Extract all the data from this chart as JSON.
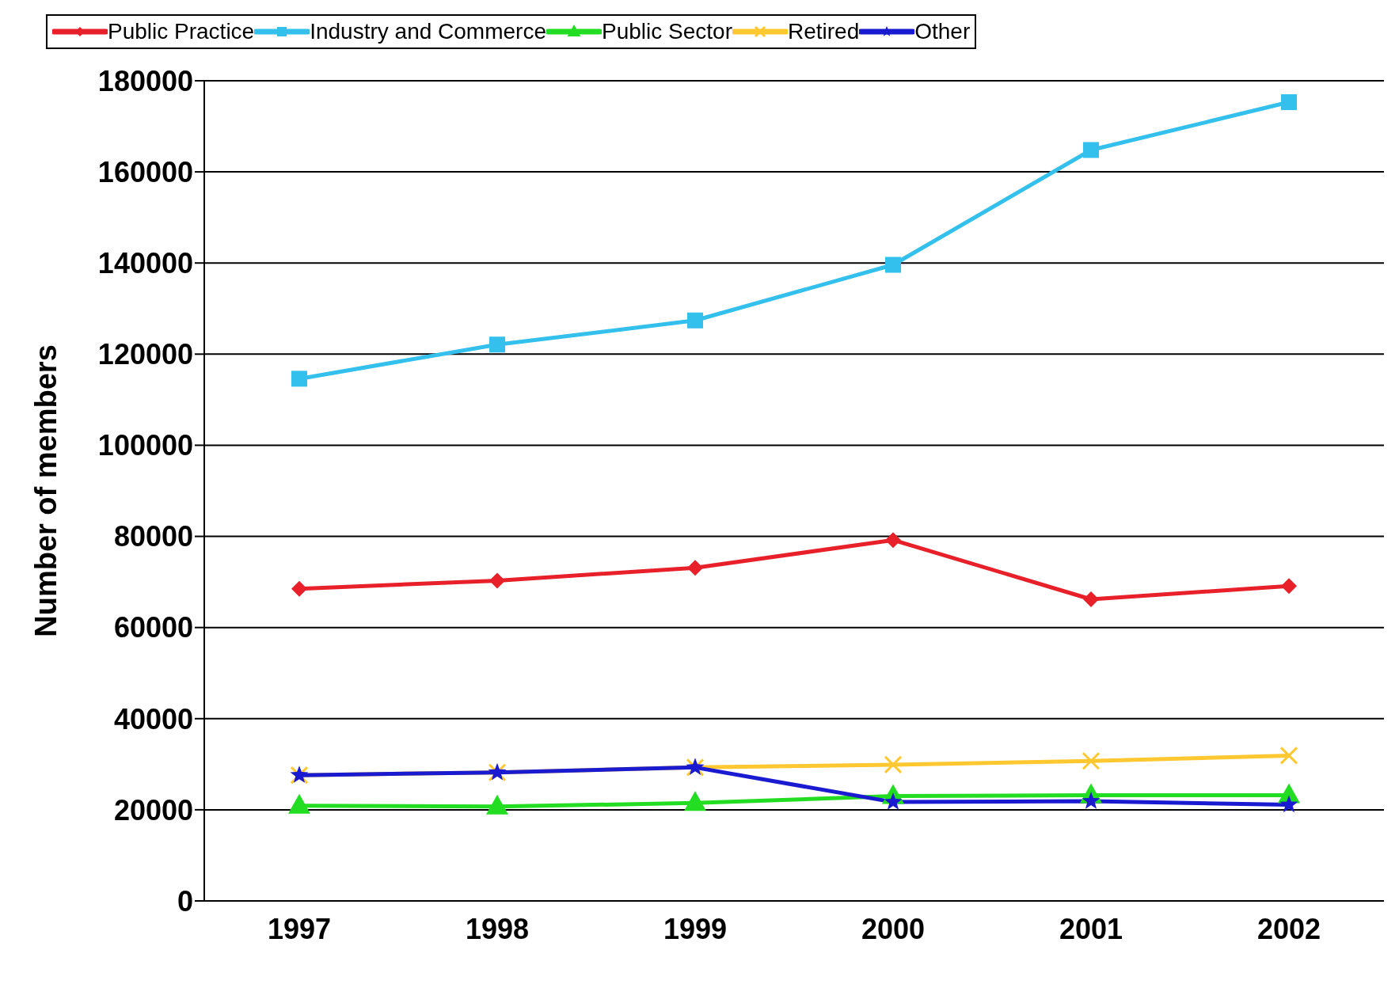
{
  "chart_data": {
    "type": "line",
    "ylabel": "Number of members",
    "categories": [
      "1997",
      "1998",
      "1999",
      "2000",
      "2001",
      "2002"
    ],
    "series": [
      {
        "name": "Public Practice",
        "color": "#e8202a",
        "marker": "diamond",
        "values": [
          68500,
          70300,
          73100,
          79200,
          66200,
          69100
        ]
      },
      {
        "name": "Industry and Commerce",
        "color": "#33c0ec",
        "marker": "square",
        "values": [
          114600,
          122100,
          127400,
          139600,
          164800,
          175300
        ]
      },
      {
        "name": "Public Sector",
        "color": "#22dd22",
        "marker": "triangle",
        "values": [
          20900,
          20700,
          21500,
          23000,
          23200,
          23200
        ]
      },
      {
        "name": "Retired",
        "color": "#ffc830",
        "marker": "cross",
        "values": [
          27600,
          28200,
          29300,
          29900,
          30700,
          31900
        ]
      },
      {
        "name": "Other",
        "color": "#1a1ad0",
        "marker": "star",
        "values": [
          27600,
          28200,
          29300,
          21700,
          21900,
          21100
        ]
      }
    ],
    "ylim": [
      0,
      180000
    ],
    "yticks": [
      0,
      20000,
      40000,
      60000,
      80000,
      100000,
      120000,
      140000,
      160000,
      180000
    ],
    "grid": "y",
    "legend": "top"
  }
}
